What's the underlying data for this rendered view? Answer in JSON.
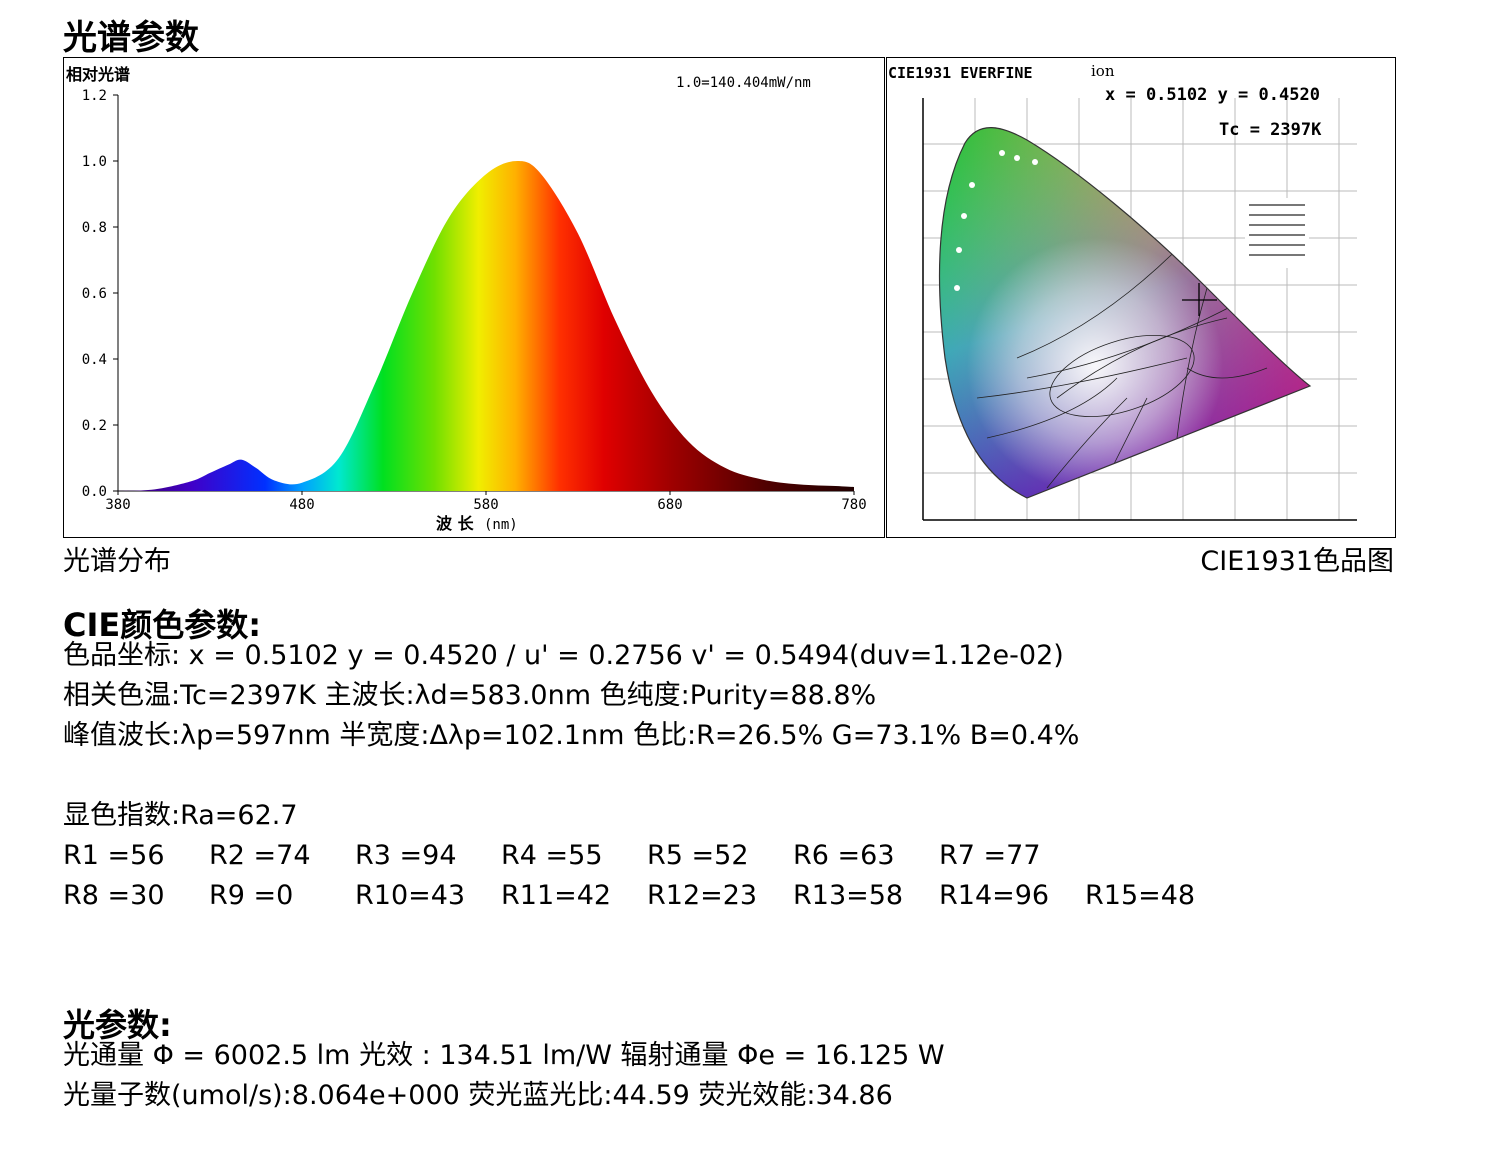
{
  "page_title": "光谱参数",
  "spectrum_caption": "光谱分布",
  "cie_caption": "CIE1931色品图",
  "cie_header": {
    "title": "CIE1931 EVERFINE",
    "title_suffix": "ion",
    "coord_text": "x = 0.5102 y = 0.4520",
    "tc_text": "Tc = 2397K"
  },
  "chart_data": {
    "type": "area",
    "title": "相对光谱",
    "annotation": "1.0=140.404mW/nm",
    "xlabel": "波 长",
    "xunit": "(nm)",
    "xlim": [
      380,
      780
    ],
    "ylim": [
      0,
      1.2
    ],
    "x_ticks": [
      380,
      480,
      580,
      680,
      780
    ],
    "y_ticks": [
      "0.0",
      "0.2",
      "0.4",
      "0.6",
      "0.8",
      "1.0",
      "1.2"
    ],
    "x": [
      380,
      400,
      420,
      430,
      440,
      447,
      455,
      465,
      480,
      500,
      520,
      540,
      560,
      580,
      597,
      610,
      630,
      650,
      670,
      690,
      710,
      730,
      750,
      770,
      780
    ],
    "y": [
      0.0,
      0.005,
      0.03,
      0.055,
      0.08,
      0.095,
      0.07,
      0.032,
      0.025,
      0.1,
      0.33,
      0.6,
      0.83,
      0.96,
      1.0,
      0.96,
      0.78,
      0.52,
      0.3,
      0.15,
      0.07,
      0.035,
      0.02,
      0.015,
      0.012
    ]
  },
  "cie_params": {
    "title": "CIE颜色参数:",
    "lines": [
      "色品坐标: x = 0.5102 y = 0.4520 / u' = 0.2756 v' = 0.5494(duv=1.12e-02)",
      "相关色温:Tc=2397K  主波长:λd=583.0nm  色纯度:Purity=88.8%",
      "峰值波长:λp=597nm  半宽度:Δλp=102.1nm 色比:R=26.5% G=73.1% B=0.4%"
    ]
  },
  "cri": {
    "ra_label": "显色指数:Ra=62.7",
    "row1": [
      "R1 =56",
      "R2 =74",
      "R3 =94",
      "R4 =55",
      "R5 =52",
      "R6 =63",
      "R7 =77"
    ],
    "row2": [
      "R8 =30",
      "R9 =0",
      "R10=43",
      "R11=42",
      "R12=23",
      "R13=58",
      "R14=96",
      "R15=48"
    ]
  },
  "photo_params": {
    "title": "光参数:",
    "lines": [
      "光通量   Φ  = 6002.5 lm   光效 : 134.51 lm/W  辐射通量 Φe  = 16.125 W",
      "光量子数(umol/s):8.064e+000  荧光蓝光比:44.59 荧光效能:34.86"
    ]
  },
  "colors": {
    "background": "#ffffff",
    "text": "#000000",
    "chart_frame": "#000000"
  }
}
